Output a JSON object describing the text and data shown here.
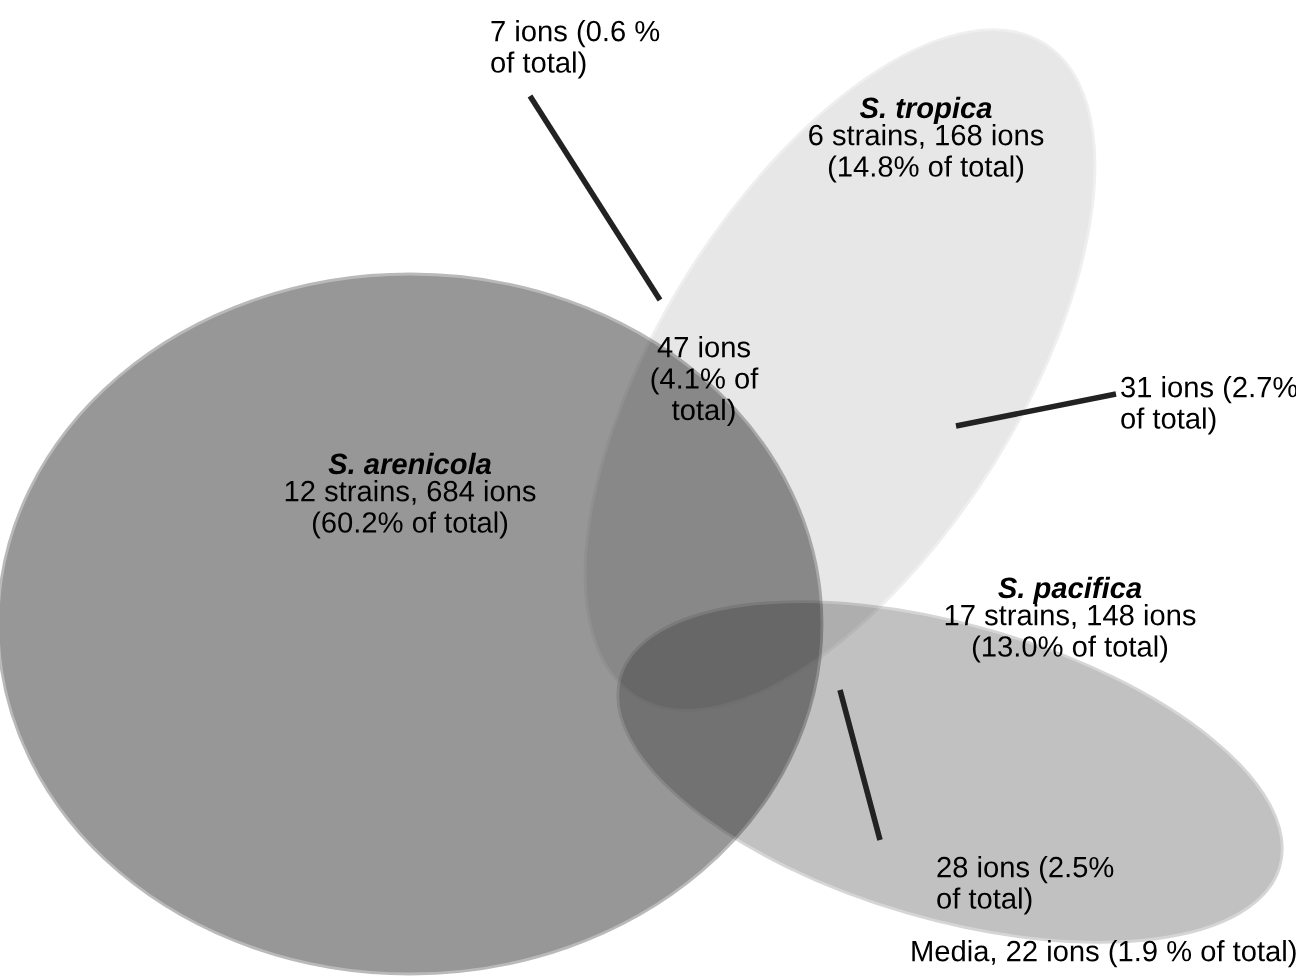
{
  "chart_data": {
    "type": "other",
    "categories": [
      "S. tropica",
      "S. arenicola",
      "S. pacifica"
    ],
    "values": [
      168,
      684,
      148
    ],
    "value_labels": [
      "6 strains, 168 ions\n(14.8% of total)",
      "12 strains, 684 ions\n(60.2% of total)",
      "17 strains, 148 ions\n(13.0% of total)"
    ],
    "colors": [
      "#ededed",
      "#b0b0b0",
      "#d0d0d0"
    ],
    "annotations": [
      "7 ions (0.6 %\nof total)",
      "47 ions\n(4.1% of\ntotal)",
      "31 ions (2.7%\nof total)",
      "28 ions (2.5%\nof total)",
      "Media, 22 ions (1.9 % of total)"
    ]
  }
}
